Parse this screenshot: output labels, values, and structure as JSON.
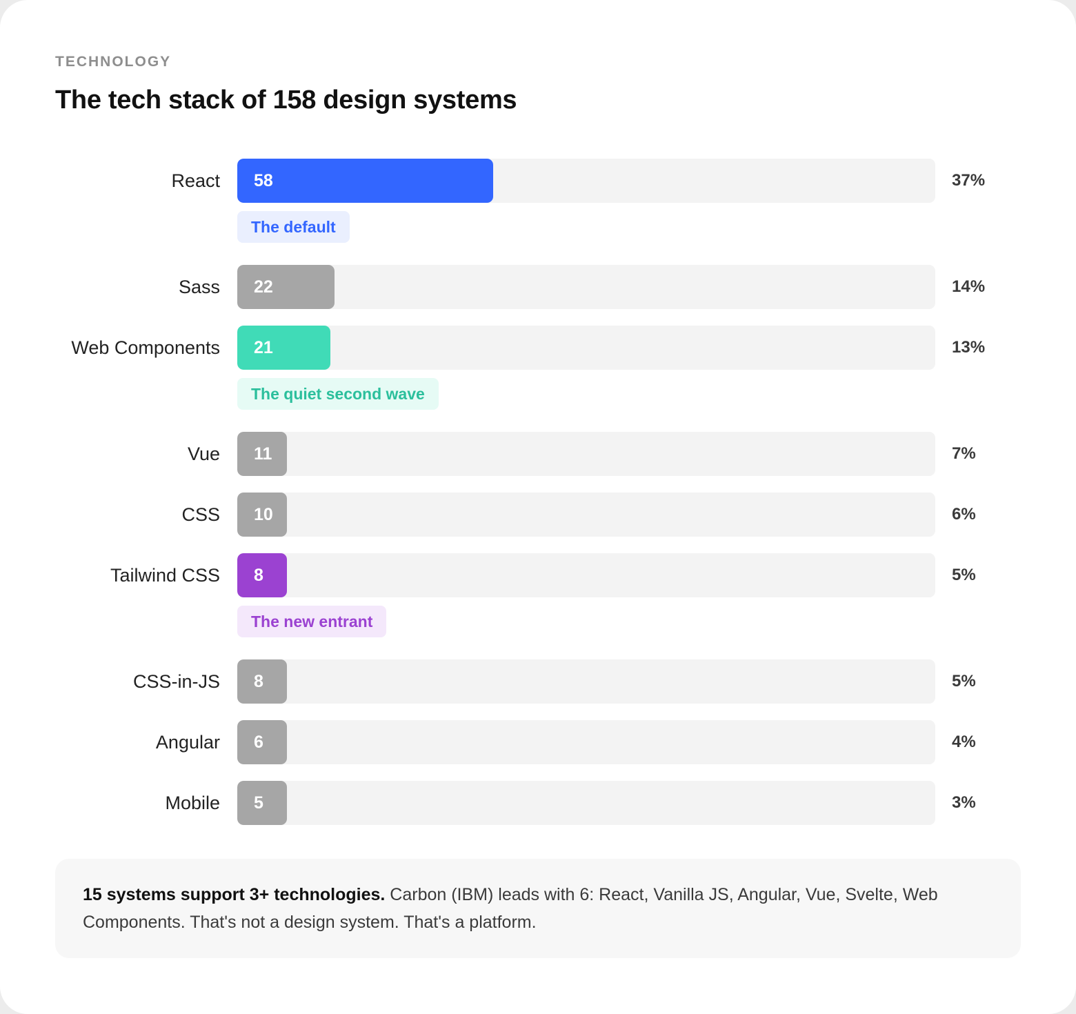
{
  "header": {
    "eyebrow": "TECHNOLOGY",
    "title": "The tech stack of 158 design systems"
  },
  "colors": {
    "react": "#3366ff",
    "neutral": "#a6a6a6",
    "web_components": "#40dbb7",
    "tailwind": "#9b42d1",
    "track": "#f3f3f3"
  },
  "chart_data": {
    "type": "bar",
    "orientation": "horizontal",
    "title": "The tech stack of 158 design systems",
    "total": 158,
    "xlim": [
      0,
      158
    ],
    "categories": [
      "React",
      "Sass",
      "Web Components",
      "Vue",
      "CSS",
      "Tailwind CSS",
      "CSS-in-JS",
      "Angular",
      "Mobile"
    ],
    "values": [
      58,
      22,
      21,
      11,
      10,
      8,
      8,
      6,
      5
    ],
    "percent_labels": [
      "37%",
      "14%",
      "13%",
      "7%",
      "6%",
      "5%",
      "5%",
      "4%",
      "3%"
    ],
    "bar_colors": [
      "#3366ff",
      "#a6a6a6",
      "#40dbb7",
      "#a6a6a6",
      "#a6a6a6",
      "#9b42d1",
      "#a6a6a6",
      "#a6a6a6",
      "#a6a6a6"
    ],
    "annotations": [
      {
        "category": "React",
        "text": "The default",
        "color": "#3366ff",
        "background": "#eaeffe"
      },
      {
        "category": "Web Components",
        "text": "The quiet second wave",
        "color": "#2bbf9c",
        "background": "#e6fbf5"
      },
      {
        "category": "Tailwind CSS",
        "text": "The new entrant",
        "color": "#9b42d1",
        "background": "#f4e8fb"
      }
    ]
  },
  "note": {
    "lead": "15 systems support 3+ technologies.",
    "body": " Carbon (IBM) leads with 6: React, Vanilla JS, Angular, Vue, Svelte, Web Components. That's not a design system. That's a platform."
  }
}
